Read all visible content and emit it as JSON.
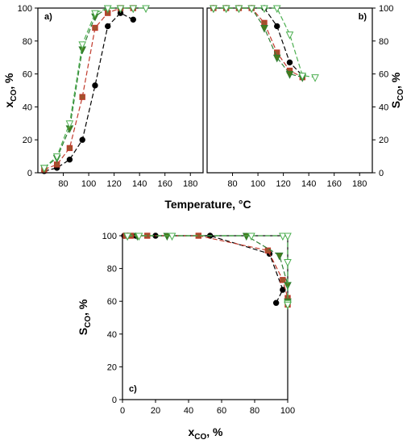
{
  "chart_data": [
    {
      "panel": "a)",
      "type": "line",
      "ylabel": "x",
      "ylabel_sub": "CO",
      "ylabel_unit": ", %",
      "xlim": [
        60,
        190
      ],
      "ylim": [
        0,
        100
      ],
      "xticks": [
        80,
        100,
        120,
        140,
        160,
        180
      ],
      "yticks": [
        0,
        20,
        40,
        60,
        80,
        100
      ],
      "y_axis_side": "left",
      "series": [
        {
          "marker": "circle",
          "color": "#000000",
          "fill": "#000000",
          "x": [
            65,
            75,
            85,
            95,
            105,
            115,
            125,
            135
          ],
          "y": [
            1,
            3,
            8,
            20,
            53,
            89,
            97,
            93
          ]
        },
        {
          "marker": "square",
          "color": "#c0392b",
          "fill": "#a0522d",
          "x": [
            65,
            75,
            85,
            95,
            105,
            115,
            125,
            135
          ],
          "y": [
            2,
            5,
            15,
            46,
            88,
            97,
            100,
            100
          ]
        },
        {
          "marker": "triangle-down",
          "color": "#2e7d32",
          "fill": "#4a7a1a",
          "x": [
            65,
            75,
            85,
            95,
            105,
            115,
            125,
            135
          ],
          "y": [
            3,
            9,
            27,
            75,
            95,
            100,
            100,
            100
          ]
        },
        {
          "marker": "triangle-down-open",
          "color": "#4caf50",
          "fill": "none",
          "x": [
            65,
            75,
            85,
            95,
            105,
            115,
            125,
            135,
            145
          ],
          "y": [
            3,
            10,
            30,
            78,
            97,
            100,
            100,
            100,
            100
          ]
        }
      ]
    },
    {
      "panel": "b)",
      "type": "line",
      "ylabel": "S",
      "ylabel_sub": "CO",
      "ylabel_unit": ", %",
      "xlim": [
        60,
        190
      ],
      "ylim": [
        0,
        100
      ],
      "xticks": [
        80,
        100,
        120,
        140,
        160,
        180
      ],
      "yticks": [
        0,
        20,
        40,
        60,
        80,
        100
      ],
      "y_axis_side": "right",
      "series": [
        {
          "marker": "circle",
          "color": "#000000",
          "fill": "#000000",
          "x": [
            65,
            75,
            85,
            95,
            105,
            115,
            125,
            135
          ],
          "y": [
            100,
            100,
            100,
            100,
            100,
            89,
            67,
            59
          ]
        },
        {
          "marker": "square",
          "color": "#c0392b",
          "fill": "#a0522d",
          "x": [
            65,
            75,
            85,
            95,
            105,
            115,
            125,
            135
          ],
          "y": [
            100,
            100,
            100,
            100,
            91,
            73,
            62,
            58
          ]
        },
        {
          "marker": "triangle-down",
          "color": "#2e7d32",
          "fill": "#4a7a1a",
          "x": [
            65,
            75,
            85,
            95,
            105,
            115,
            125,
            135
          ],
          "y": [
            100,
            100,
            100,
            100,
            88,
            70,
            60,
            58
          ]
        },
        {
          "marker": "triangle-down-open",
          "color": "#4caf50",
          "fill": "none",
          "x": [
            65,
            75,
            85,
            95,
            105,
            115,
            125,
            135,
            145
          ],
          "y": [
            100,
            100,
            100,
            100,
            100,
            100,
            84,
            59,
            58
          ]
        }
      ]
    },
    {
      "panel": "c)",
      "type": "line",
      "xlabel": "x",
      "xlabel_sub": "CO",
      "xlabel_unit": ", %",
      "ylabel": "S",
      "ylabel_sub": "CO",
      "ylabel_unit": ", %",
      "xlim": [
        0,
        100
      ],
      "ylim": [
        0,
        100
      ],
      "xticks": [
        0,
        20,
        40,
        60,
        80,
        100
      ],
      "yticks": [
        0,
        20,
        40,
        60,
        80,
        100
      ],
      "series": [
        {
          "marker": "circle",
          "color": "#000000",
          "fill": "#000000",
          "x": [
            1,
            3,
            8,
            20,
            53,
            89,
            97,
            93
          ],
          "y": [
            100,
            100,
            100,
            100,
            100,
            89,
            67,
            59
          ]
        },
        {
          "marker": "square",
          "color": "#c0392b",
          "fill": "#a0522d",
          "x": [
            2,
            5,
            15,
            46,
            88,
            97,
            100,
            100
          ],
          "y": [
            100,
            100,
            100,
            100,
            91,
            73,
            62,
            58
          ]
        },
        {
          "marker": "triangle-down",
          "color": "#2e7d32",
          "fill": "#4a7a1a",
          "x": [
            3,
            9,
            27,
            75,
            95,
            100,
            100,
            100
          ],
          "y": [
            100,
            100,
            100,
            100,
            88,
            70,
            60,
            58
          ]
        },
        {
          "marker": "triangle-down-open",
          "color": "#4caf50",
          "fill": "none",
          "x": [
            3,
            10,
            30,
            78,
            97,
            100,
            100,
            100,
            100
          ],
          "y": [
            100,
            100,
            100,
            100,
            100,
            100,
            84,
            59,
            58
          ]
        }
      ]
    }
  ],
  "shared_xlabel": "Temperature, °C"
}
